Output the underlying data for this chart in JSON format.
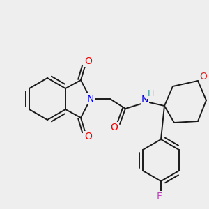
{
  "bg_color": "#eeeeee",
  "bond_color": "#1a1a1a",
  "bond_width": 1.4,
  "atom_colors": {
    "N_phthal": "#0000ee",
    "N_amide": "#0000ee",
    "O": "#ee0000",
    "F": "#bb44bb",
    "H": "#339999",
    "O_oxane": "#dd2222"
  },
  "font_size": 10,
  "fig_size": [
    3.0,
    3.0
  ],
  "dpi": 100
}
